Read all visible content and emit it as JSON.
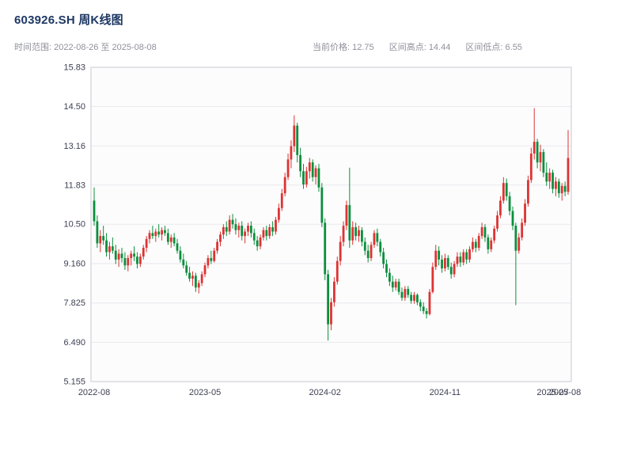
{
  "header": {
    "title": "603926.SH 周K线图",
    "date_range": "时间范围: 2022-08-26 至 2025-08-08",
    "stats": {
      "current_price": "当前价格: 12.75",
      "range_high": "区间高点: 14.44",
      "range_low": "区间低点: 6.55"
    }
  },
  "chart_data": {
    "type": "candlestick",
    "title": "603926.SH 周K线图",
    "interval": "weekly",
    "x_start": "2022-08-26",
    "x_end": "2025-08-08",
    "current_price": 12.75,
    "range_high": 14.44,
    "range_low": 6.55,
    "ylim": [
      5.155,
      15.83
    ],
    "yticks": [
      {
        "value": 5.155,
        "label": "5.155"
      },
      {
        "value": 6.49,
        "label": "6.490"
      },
      {
        "value": 7.825,
        "label": "7.825"
      },
      {
        "value": 9.16,
        "label": "9.160"
      },
      {
        "value": 10.5,
        "label": "10.50"
      },
      {
        "value": 11.83,
        "label": "11.83"
      },
      {
        "value": 13.16,
        "label": "13.16"
      },
      {
        "value": 14.5,
        "label": "14.50"
      },
      {
        "value": 15.83,
        "label": "15.83"
      }
    ],
    "xticks": [
      {
        "index": 0,
        "label": "2022-08"
      },
      {
        "index": 36,
        "label": "2023-05"
      },
      {
        "index": 75,
        "label": "2024-02"
      },
      {
        "index": 114,
        "label": "2024-11"
      },
      {
        "index": 149,
        "label": "2025-07"
      },
      {
        "index": 153,
        "label": "2025-08"
      }
    ],
    "up_color": "#dd3333",
    "down_color": "#0b8f3d",
    "plot_bg": "#fcfcfc",
    "grid_color": "#e9e9ef",
    "border_color": "#c9c9d2",
    "axis_color": "#3e4053",
    "grid": true,
    "legend": false,
    "candles_format": [
      "open",
      "high",
      "low",
      "close"
    ],
    "candles": [
      [
        11.3,
        11.75,
        10.45,
        10.6
      ],
      [
        10.6,
        10.8,
        9.7,
        9.85
      ],
      [
        9.85,
        10.3,
        9.55,
        10.1
      ],
      [
        10.1,
        10.45,
        9.8,
        9.95
      ],
      [
        9.95,
        10.2,
        9.4,
        9.55
      ],
      [
        9.55,
        9.9,
        9.3,
        9.75
      ],
      [
        9.75,
        10.05,
        9.5,
        9.6
      ],
      [
        9.6,
        9.8,
        9.15,
        9.3
      ],
      [
        9.3,
        9.65,
        9.05,
        9.5
      ],
      [
        9.5,
        9.7,
        9.2,
        9.35
      ],
      [
        9.35,
        9.55,
        8.95,
        9.1
      ],
      [
        9.1,
        9.45,
        8.9,
        9.35
      ],
      [
        9.35,
        9.6,
        9.1,
        9.5
      ],
      [
        9.5,
        9.75,
        9.25,
        9.4
      ],
      [
        9.4,
        9.55,
        9.0,
        9.15
      ],
      [
        9.15,
        9.5,
        9.05,
        9.4
      ],
      [
        9.4,
        9.8,
        9.3,
        9.7
      ],
      [
        9.7,
        10.1,
        9.55,
        10.0
      ],
      [
        10.0,
        10.3,
        9.85,
        10.2
      ],
      [
        10.2,
        10.45,
        10.0,
        10.1
      ],
      [
        10.1,
        10.35,
        9.9,
        10.25
      ],
      [
        10.25,
        10.5,
        10.05,
        10.15
      ],
      [
        10.15,
        10.4,
        9.95,
        10.3
      ],
      [
        10.3,
        10.45,
        10.1,
        10.2
      ],
      [
        10.2,
        10.35,
        9.8,
        9.9
      ],
      [
        9.9,
        10.15,
        9.7,
        10.05
      ],
      [
        10.05,
        10.2,
        9.75,
        9.85
      ],
      [
        9.85,
        10.0,
        9.5,
        9.6
      ],
      [
        9.6,
        9.75,
        9.2,
        9.3
      ],
      [
        9.3,
        9.5,
        9.0,
        9.1
      ],
      [
        9.1,
        9.25,
        8.75,
        8.85
      ],
      [
        8.85,
        9.05,
        8.55,
        8.65
      ],
      [
        8.65,
        8.9,
        8.4,
        8.75
      ],
      [
        8.75,
        8.85,
        8.2,
        8.35
      ],
      [
        8.35,
        8.6,
        8.15,
        8.5
      ],
      [
        8.5,
        8.9,
        8.4,
        8.8
      ],
      [
        8.8,
        9.2,
        8.7,
        9.1
      ],
      [
        9.1,
        9.45,
        9.0,
        9.35
      ],
      [
        9.35,
        9.6,
        9.15,
        9.25
      ],
      [
        9.25,
        9.7,
        9.2,
        9.6
      ],
      [
        9.6,
        10.0,
        9.5,
        9.9
      ],
      [
        9.9,
        10.25,
        9.75,
        10.15
      ],
      [
        10.15,
        10.5,
        10.0,
        10.4
      ],
      [
        10.4,
        10.6,
        10.1,
        10.25
      ],
      [
        10.25,
        10.8,
        10.15,
        10.65
      ],
      [
        10.65,
        10.85,
        10.35,
        10.5
      ],
      [
        10.5,
        10.7,
        10.15,
        10.3
      ],
      [
        10.3,
        10.55,
        10.05,
        10.45
      ],
      [
        10.45,
        10.6,
        9.95,
        10.1
      ],
      [
        10.1,
        10.35,
        9.85,
        10.25
      ],
      [
        10.25,
        10.55,
        10.1,
        10.45
      ],
      [
        10.45,
        10.6,
        10.05,
        10.2
      ],
      [
        10.2,
        10.35,
        9.8,
        9.95
      ],
      [
        9.95,
        10.1,
        9.6,
        9.75
      ],
      [
        9.75,
        10.15,
        9.65,
        10.05
      ],
      [
        10.05,
        10.4,
        9.95,
        10.3
      ],
      [
        10.3,
        10.45,
        9.95,
        10.1
      ],
      [
        10.1,
        10.5,
        10.0,
        10.4
      ],
      [
        10.4,
        10.6,
        10.1,
        10.25
      ],
      [
        10.25,
        10.75,
        10.15,
        10.65
      ],
      [
        10.65,
        11.2,
        10.55,
        11.05
      ],
      [
        11.05,
        11.7,
        10.95,
        11.55
      ],
      [
        11.55,
        12.25,
        11.45,
        12.1
      ],
      [
        12.1,
        12.9,
        12.0,
        12.7
      ],
      [
        12.7,
        13.35,
        12.4,
        13.15
      ],
      [
        13.15,
        14.2,
        12.95,
        13.85
      ],
      [
        13.85,
        13.95,
        12.6,
        12.85
      ],
      [
        12.85,
        13.1,
        12.1,
        12.3
      ],
      [
        12.3,
        12.55,
        11.7,
        11.85
      ],
      [
        11.85,
        12.45,
        11.75,
        12.3
      ],
      [
        12.3,
        12.75,
        12.05,
        12.6
      ],
      [
        12.6,
        12.7,
        11.95,
        12.1
      ],
      [
        12.1,
        12.5,
        11.85,
        12.4
      ],
      [
        12.4,
        12.55,
        11.6,
        11.75
      ],
      [
        11.75,
        11.9,
        10.4,
        10.55
      ],
      [
        10.55,
        10.7,
        8.6,
        8.8
      ],
      [
        8.8,
        8.95,
        6.55,
        7.1
      ],
      [
        7.1,
        8.0,
        6.9,
        7.85
      ],
      [
        7.85,
        8.7,
        7.7,
        8.55
      ],
      [
        8.55,
        9.4,
        8.45,
        9.25
      ],
      [
        9.25,
        10.1,
        9.1,
        9.9
      ],
      [
        9.9,
        10.6,
        9.75,
        10.45
      ],
      [
        10.45,
        11.3,
        10.3,
        11.15
      ],
      [
        11.15,
        12.42,
        9.7,
        9.95
      ],
      [
        9.95,
        10.6,
        9.8,
        10.4
      ],
      [
        10.4,
        10.55,
        9.95,
        10.1
      ],
      [
        10.1,
        10.45,
        9.9,
        10.3
      ],
      [
        10.3,
        10.4,
        9.75,
        9.9
      ],
      [
        9.9,
        10.05,
        9.45,
        9.6
      ],
      [
        9.6,
        9.8,
        9.2,
        9.35
      ],
      [
        9.35,
        9.9,
        9.25,
        9.8
      ],
      [
        9.8,
        10.3,
        9.7,
        10.2
      ],
      [
        10.2,
        10.35,
        9.75,
        9.9
      ],
      [
        9.9,
        10.0,
        9.4,
        9.55
      ],
      [
        9.55,
        9.7,
        9.0,
        9.15
      ],
      [
        9.15,
        9.3,
        8.7,
        8.85
      ],
      [
        8.85,
        9.0,
        8.4,
        8.55
      ],
      [
        8.55,
        8.75,
        8.2,
        8.35
      ],
      [
        8.35,
        8.65,
        8.25,
        8.55
      ],
      [
        8.55,
        8.65,
        8.1,
        8.2
      ],
      [
        8.2,
        8.35,
        7.9,
        8.0
      ],
      [
        8.0,
        8.4,
        7.9,
        8.3
      ],
      [
        8.3,
        8.4,
        8.0,
        8.1
      ],
      [
        8.1,
        8.2,
        7.8,
        7.9
      ],
      [
        7.9,
        8.2,
        7.8,
        8.1
      ],
      [
        8.1,
        8.15,
        7.75,
        7.85
      ],
      [
        7.85,
        7.95,
        7.55,
        7.7
      ],
      [
        7.7,
        7.85,
        7.45,
        7.55
      ],
      [
        7.55,
        7.65,
        7.3,
        7.45
      ],
      [
        7.45,
        8.3,
        7.4,
        8.2
      ],
      [
        8.2,
        9.2,
        8.15,
        9.05
      ],
      [
        9.05,
        9.8,
        8.95,
        9.6
      ],
      [
        9.6,
        9.75,
        9.1,
        9.3
      ],
      [
        9.3,
        9.45,
        8.85,
        9.0
      ],
      [
        9.0,
        9.5,
        8.9,
        9.35
      ],
      [
        9.35,
        9.45,
        8.95,
        9.05
      ],
      [
        9.05,
        9.2,
        8.65,
        8.8
      ],
      [
        8.8,
        9.25,
        8.7,
        9.15
      ],
      [
        9.15,
        9.55,
        9.05,
        9.4
      ],
      [
        9.4,
        9.55,
        9.05,
        9.2
      ],
      [
        9.2,
        9.65,
        9.1,
        9.55
      ],
      [
        9.55,
        9.65,
        9.15,
        9.3
      ],
      [
        9.3,
        9.75,
        9.2,
        9.65
      ],
      [
        9.65,
        10.05,
        9.55,
        9.9
      ],
      [
        9.9,
        10.0,
        9.55,
        9.7
      ],
      [
        9.7,
        10.2,
        9.6,
        10.1
      ],
      [
        10.1,
        10.55,
        10.0,
        10.4
      ],
      [
        10.4,
        10.5,
        9.9,
        10.05
      ],
      [
        10.05,
        10.15,
        9.5,
        9.65
      ],
      [
        9.65,
        10.05,
        9.55,
        9.95
      ],
      [
        9.95,
        10.45,
        9.85,
        10.35
      ],
      [
        10.35,
        10.95,
        10.25,
        10.8
      ],
      [
        10.8,
        11.45,
        10.7,
        11.3
      ],
      [
        11.3,
        12.1,
        11.2,
        11.9
      ],
      [
        11.9,
        12.05,
        11.3,
        11.45
      ],
      [
        11.45,
        11.6,
        10.8,
        10.95
      ],
      [
        10.95,
        11.1,
        10.3,
        10.45
      ],
      [
        10.45,
        10.55,
        7.75,
        9.6
      ],
      [
        9.6,
        10.2,
        9.5,
        10.05
      ],
      [
        10.05,
        10.7,
        9.95,
        10.55
      ],
      [
        10.55,
        11.35,
        10.45,
        11.2
      ],
      [
        11.2,
        12.15,
        11.1,
        12.0
      ],
      [
        12.0,
        13.1,
        11.9,
        12.9
      ],
      [
        12.9,
        14.44,
        12.7,
        13.3
      ],
      [
        13.3,
        13.4,
        12.4,
        12.6
      ],
      [
        12.6,
        13.2,
        12.3,
        12.95
      ],
      [
        12.95,
        13.05,
        12.1,
        12.25
      ],
      [
        12.25,
        12.6,
        11.8,
        11.95
      ],
      [
        11.95,
        12.4,
        11.7,
        12.25
      ],
      [
        12.25,
        12.35,
        11.55,
        11.7
      ],
      [
        11.7,
        12.1,
        11.45,
        11.95
      ],
      [
        11.95,
        12.05,
        11.4,
        11.55
      ],
      [
        11.55,
        11.9,
        11.3,
        11.8
      ],
      [
        11.8,
        11.95,
        11.45,
        11.6
      ],
      [
        11.6,
        13.7,
        11.5,
        12.75
      ]
    ]
  }
}
